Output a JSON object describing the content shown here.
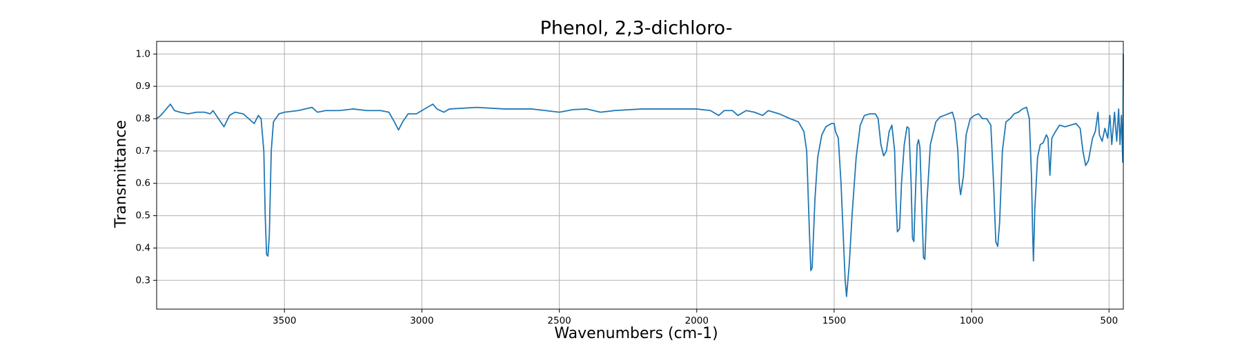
{
  "chart_data": {
    "type": "line",
    "title": "Phenol, 2,3-dichloro-",
    "xlabel": "Wavenumbers (cm-1)",
    "ylabel": "Transmittance",
    "xlim": [
      3965,
      448
    ],
    "ylim": [
      0.211,
      1.039
    ],
    "xticks": [
      3500,
      3000,
      2500,
      2000,
      1500,
      1000,
      500
    ],
    "yticks": [
      0.3,
      0.4,
      0.5,
      0.6,
      0.7,
      0.8,
      0.9,
      {
        "value": 1,
        "label": "1.0"
      }
    ],
    "grid": true,
    "series": [
      {
        "color": "#1f77b4",
        "x": [
          3965,
          3950,
          3930,
          3915,
          3900,
          3880,
          3850,
          3820,
          3790,
          3770,
          3760,
          3740,
          3720,
          3700,
          3680,
          3650,
          3630,
          3610,
          3595,
          3585,
          3575,
          3570,
          3565,
          3560,
          3555,
          3548,
          3540,
          3520,
          3500,
          3450,
          3400,
          3380,
          3350,
          3300,
          3250,
          3200,
          3150,
          3120,
          3100,
          3085,
          3070,
          3050,
          3020,
          3000,
          2970,
          2960,
          2945,
          2920,
          2900,
          2800,
          2700,
          2600,
          2550,
          2500,
          2450,
          2400,
          2350,
          2300,
          2200,
          2100,
          2000,
          1950,
          1920,
          1900,
          1870,
          1850,
          1820,
          1790,
          1760,
          1740,
          1700,
          1660,
          1630,
          1610,
          1600,
          1590,
          1585,
          1580,
          1570,
          1560,
          1545,
          1530,
          1510,
          1500,
          1495,
          1485,
          1475,
          1465,
          1460,
          1455,
          1445,
          1435,
          1420,
          1405,
          1390,
          1370,
          1350,
          1340,
          1330,
          1320,
          1310,
          1300,
          1290,
          1280,
          1275,
          1270,
          1262,
          1255,
          1245,
          1235,
          1228,
          1220,
          1215,
          1210,
          1205,
          1198,
          1193,
          1188,
          1182,
          1175,
          1170,
          1162,
          1150,
          1130,
          1115,
          1100,
          1085,
          1070,
          1060,
          1050,
          1045,
          1040,
          1030,
          1020,
          1005,
          990,
          975,
          960,
          945,
          930,
          920,
          912,
          905,
          898,
          888,
          875,
          860,
          845,
          830,
          815,
          800,
          790,
          782,
          778,
          775,
          770,
          760,
          750,
          740,
          728,
          722,
          715,
          708,
          695,
          680,
          660,
          640,
          620,
          605,
          595,
          585,
          575,
          560,
          550,
          540,
          535,
          525,
          515,
          505,
          497,
          490,
          480,
          472,
          465,
          460,
          455,
          450,
          448
        ],
        "values": [
          0.8,
          0.81,
          0.83,
          0.845,
          0.825,
          0.82,
          0.815,
          0.82,
          0.82,
          0.815,
          0.825,
          0.8,
          0.775,
          0.81,
          0.82,
          0.815,
          0.8,
          0.785,
          0.81,
          0.8,
          0.7,
          0.5,
          0.38,
          0.375,
          0.44,
          0.7,
          0.79,
          0.815,
          0.82,
          0.825,
          0.835,
          0.82,
          0.825,
          0.825,
          0.83,
          0.825,
          0.825,
          0.82,
          0.79,
          0.765,
          0.79,
          0.815,
          0.815,
          0.825,
          0.84,
          0.845,
          0.83,
          0.82,
          0.83,
          0.835,
          0.83,
          0.83,
          0.825,
          0.82,
          0.828,
          0.83,
          0.82,
          0.825,
          0.83,
          0.83,
          0.83,
          0.825,
          0.81,
          0.825,
          0.825,
          0.81,
          0.825,
          0.82,
          0.81,
          0.825,
          0.815,
          0.8,
          0.79,
          0.76,
          0.7,
          0.45,
          0.33,
          0.34,
          0.55,
          0.68,
          0.75,
          0.775,
          0.785,
          0.785,
          0.76,
          0.74,
          0.6,
          0.4,
          0.3,
          0.25,
          0.35,
          0.5,
          0.68,
          0.78,
          0.81,
          0.815,
          0.815,
          0.8,
          0.72,
          0.685,
          0.7,
          0.76,
          0.78,
          0.7,
          0.55,
          0.45,
          0.46,
          0.6,
          0.72,
          0.775,
          0.77,
          0.6,
          0.43,
          0.42,
          0.55,
          0.72,
          0.735,
          0.71,
          0.55,
          0.37,
          0.365,
          0.55,
          0.72,
          0.79,
          0.805,
          0.81,
          0.815,
          0.82,
          0.79,
          0.7,
          0.6,
          0.565,
          0.62,
          0.75,
          0.8,
          0.81,
          0.815,
          0.8,
          0.8,
          0.78,
          0.6,
          0.42,
          0.405,
          0.48,
          0.7,
          0.79,
          0.8,
          0.815,
          0.82,
          0.83,
          0.835,
          0.8,
          0.62,
          0.45,
          0.36,
          0.52,
          0.68,
          0.72,
          0.725,
          0.75,
          0.74,
          0.625,
          0.74,
          0.76,
          0.78,
          0.775,
          0.78,
          0.785,
          0.77,
          0.7,
          0.655,
          0.67,
          0.74,
          0.76,
          0.82,
          0.75,
          0.73,
          0.77,
          0.74,
          0.81,
          0.72,
          0.82,
          0.73,
          0.83,
          0.72,
          0.81,
          0.665,
          1.0
        ]
      }
    ]
  }
}
